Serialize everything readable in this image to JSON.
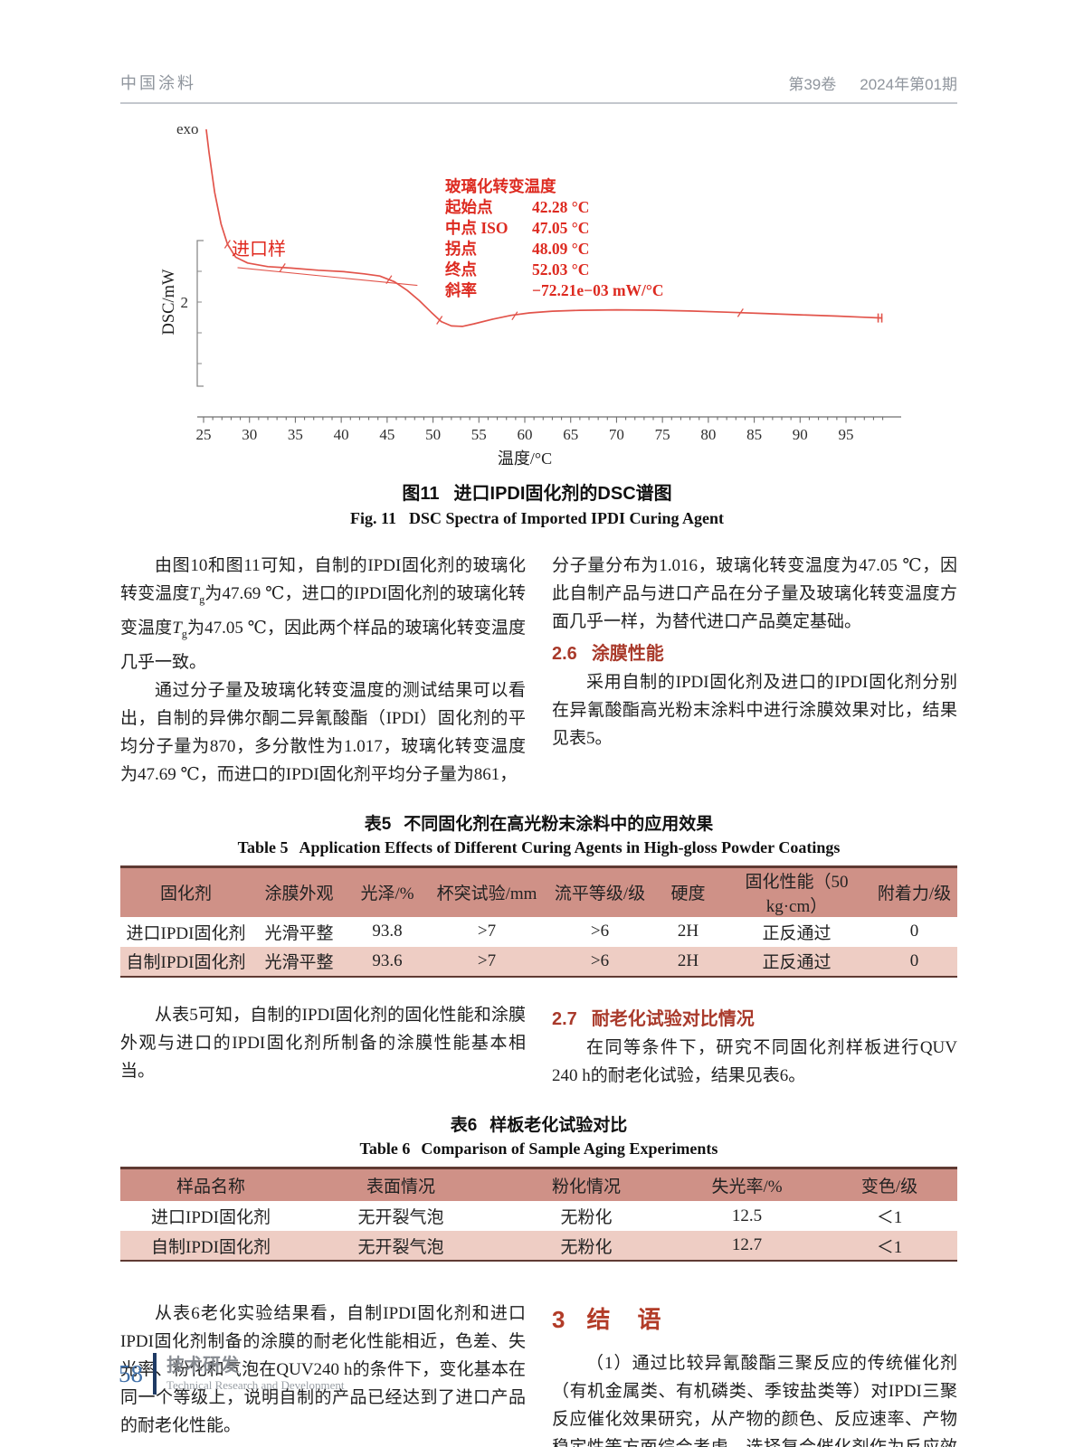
{
  "header": {
    "journal": "中国涂料",
    "volume": "第39卷",
    "issue": "2024年第01期"
  },
  "chart_data": {
    "type": "line",
    "exo_label": "exo",
    "ylabel": "DSC/mW",
    "xlabel": "温度/°C",
    "y_tick_label": "2",
    "x_ticks": [
      25,
      30,
      35,
      40,
      45,
      50,
      55,
      60,
      65,
      70,
      75,
      80,
      85,
      90,
      95
    ],
    "x_minor_step": 1,
    "x_axis_end": 99,
    "xlim": [
      24.5,
      99.5
    ],
    "series": [
      {
        "name": "进口样",
        "points": [
          [
            25.3,
            3.19
          ],
          [
            25.6,
            3.03
          ],
          [
            26.2,
            2.76
          ],
          [
            26.9,
            2.54
          ],
          [
            27.6,
            2.4
          ],
          [
            28.5,
            2.31
          ],
          [
            29.8,
            2.27
          ],
          [
            32.0,
            2.245
          ],
          [
            34.5,
            2.235
          ],
          [
            37.5,
            2.22
          ],
          [
            40.3,
            2.21
          ],
          [
            42.5,
            2.195
          ],
          [
            44.2,
            2.18
          ],
          [
            45.8,
            2.14
          ],
          [
            47.2,
            2.08
          ],
          [
            48.5,
            2.01
          ],
          [
            49.8,
            1.93
          ],
          [
            50.9,
            1.865
          ],
          [
            52.0,
            1.835
          ],
          [
            53.2,
            1.832
          ],
          [
            54.5,
            1.85
          ],
          [
            56.5,
            1.882
          ],
          [
            58.5,
            1.908
          ],
          [
            60.5,
            1.925
          ],
          [
            63.0,
            1.937
          ],
          [
            66.0,
            1.943
          ],
          [
            70.0,
            1.946
          ],
          [
            74.0,
            1.944
          ],
          [
            78.0,
            1.938
          ],
          [
            82.0,
            1.93
          ],
          [
            86.0,
            1.921
          ],
          [
            90.0,
            1.912
          ],
          [
            94.0,
            1.903
          ],
          [
            97.0,
            1.895
          ],
          [
            98.9,
            1.89
          ]
        ]
      }
    ],
    "baseline_segment": [
      [
        28.7,
        2.238
      ],
      [
        48.3,
        2.115
      ]
    ],
    "markers": [
      [
        27.6,
        2.4
      ],
      [
        33.6,
        2.238
      ],
      [
        45.2,
        2.155
      ],
      [
        50.7,
        1.875
      ],
      [
        58.9,
        1.905
      ],
      [
        83.5,
        1.926
      ]
    ],
    "end_marker": [
      98.9,
      1.89
    ],
    "annotation": {
      "title": "玻璃化转变温度",
      "rows": [
        {
          "label": "起始点",
          "value": "42.28 °C"
        },
        {
          "label": "中点 ISO",
          "value": "47.05 °C"
        },
        {
          "label": "拐点",
          "value": "48.09 °C"
        },
        {
          "label": "终点",
          "value": "52.03 °C"
        },
        {
          "label": "斜率",
          "value": "−72.21e−03 mW/°C"
        }
      ]
    }
  },
  "figure_caption": {
    "no_cn": "图11",
    "title_cn": "进口IPDI固化剂的DSC谱图",
    "no_en": "Fig. 11",
    "title_en": "DSC Spectra of Imported IPDI Curing Agent"
  },
  "body": {
    "col1_para1_segments": [
      {
        "t": "由图10和图11可知，自制的IPDI固化剂的玻璃化转变温度"
      },
      {
        "t": "T",
        "i": true
      },
      {
        "t": "g",
        "sub": true
      },
      {
        "t": "为47.69 ℃，进口的IPDI固化剂的玻璃化转变温度"
      },
      {
        "t": "T",
        "i": true
      },
      {
        "t": "g",
        "sub": true
      },
      {
        "t": "为47.05 ℃，因此两个样品的玻璃化转变温度几乎一致。"
      }
    ],
    "col1_para2": "通过分子量及玻璃化转变温度的测试结果可以看出，自制的异佛尔酮二异氰酸酯（IPDI）固化剂的平均分子量为870，多分散性为1.017，玻璃化转变温度为47.69 ℃，而进口的IPDI固化剂平均分子量为861，",
    "col2_para1": "分子量分布为1.016，玻璃化转变温度为47.05 ℃，因此自制产品与进口产品在分子量及玻璃化转变温度方面几乎一样，为替代进口产品奠定基础。",
    "sec26_num": "2.6",
    "sec26_title": "涂膜性能",
    "col2_para2": "采用自制的IPDI固化剂及进口的IPDI固化剂分别在异氰酸酯高光粉末涂料中进行涂膜效果对比，结果见表5。"
  },
  "table5": {
    "title_no": "表5",
    "title_cn": "不同固化剂在高光粉末涂料中的应用效果",
    "title_no_en": "Table 5",
    "title_en": "Application Effects of Different Curing Agents in High-gloss Powder Coatings",
    "headers": [
      "固化剂",
      "涂膜外观",
      "光泽/%",
      "杯突试验/mm",
      "流平等级/级",
      "硬度",
      "固化性能（50 kg·cm）",
      "附着力/级"
    ],
    "rows": [
      [
        "进口IPDI固化剂",
        "光滑平整",
        "93.8",
        ">7",
        ">6",
        "2H",
        "正反通过",
        "0"
      ],
      [
        "自制IPDI固化剂",
        "光滑平整",
        "93.6",
        ">7",
        ">6",
        "2H",
        "正反通过",
        "0"
      ]
    ]
  },
  "mid": {
    "left_para": "从表5可知，自制的IPDI固化剂的固化性能和涂膜外观与进口的IPDI固化剂所制备的涂膜性能基本相当。",
    "sec27_num": "2.7",
    "sec27_title": "耐老化试验对比情况",
    "right_para": "在同等条件下，研究不同固化剂样板进行QUV 240 h的耐老化试验，结果见表6。"
  },
  "table6": {
    "title_no": "表6",
    "title_cn": "样板老化试验对比",
    "title_no_en": "Table 6",
    "title_en": "Comparison of Sample Aging Experiments",
    "headers": [
      "样品名称",
      "表面情况",
      "粉化情况",
      "失光率/%",
      "变色/级"
    ],
    "rows": [
      [
        "进口IPDI固化剂",
        "无开裂气泡",
        "无粉化",
        "12.5",
        "＜1"
      ],
      [
        "自制IPDI固化剂",
        "无开裂气泡",
        "无粉化",
        "12.7",
        "＜1"
      ]
    ]
  },
  "bottom": {
    "left_para": "从表6老化实验结果看，自制IPDI固化剂和进口IPDI固化剂制备的涂膜的耐老化性能相近，色差、失光率、粉化和气泡在QUV240 h的条件下，变化基本在同一个等级上，说明自制的产品已经达到了进口产品的耐老化性能。",
    "sec3_num": "3",
    "sec3_title": "结　语",
    "right_para": "（1）通过比较异氰酸酯三聚反应的传统催化剂（有机金属类、有机磷类、季铵盐类等）对IPDI三聚反应催化效果研究，从产物的颜色、反应速率、产物稳定性等方面综合考虑，选择复合催化剂作为反应效果最佳。"
  },
  "footer": {
    "page_number": "58",
    "section_cn": "技术研发",
    "section_en": "Technical Research and Development"
  },
  "colors": {
    "curve_red": "#e2544b",
    "annotation_red": "#dd2a20",
    "heading_red": "#a93a2b",
    "conclusion_red": "#b23c28",
    "table_header_bg": "#cf9187",
    "table_alt_row_bg": "#eecdc4",
    "table_border": "#5f3a33",
    "axis_gray": "#6f6f6f",
    "footer_blue": "#3f6fa8",
    "footer_bar_navy": "#1e3a64"
  }
}
